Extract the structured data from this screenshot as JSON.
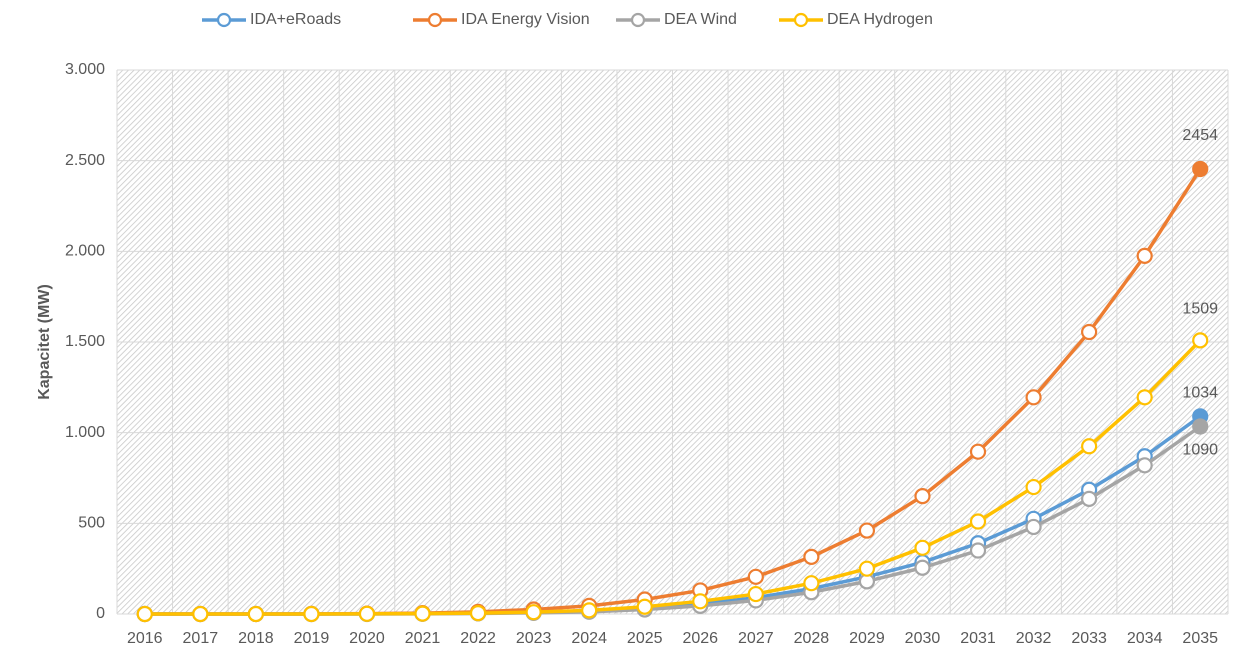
{
  "chart_data": {
    "type": "line",
    "y_label": "Kapacitet (MW)",
    "categories": [
      "2016",
      "2017",
      "2018",
      "2019",
      "2020",
      "2021",
      "2022",
      "2023",
      "2024",
      "2025",
      "2026",
      "2027",
      "2028",
      "2029",
      "2030",
      "2031",
      "2032",
      "2033",
      "2034",
      "2035"
    ],
    "series": [
      {
        "name": "IDA+eRoads",
        "color": "#5b9bd5",
        "values": [
          0,
          0,
          0,
          0,
          1,
          2,
          4,
          8,
          15,
          30,
          55,
          90,
          140,
          205,
          285,
          390,
          525,
          685,
          870,
          1090
        ]
      },
      {
        "name": "IDA Energy Vision",
        "color": "#ed7d31",
        "values": [
          0,
          0,
          0,
          1,
          2,
          5,
          12,
          25,
          45,
          80,
          130,
          205,
          315,
          460,
          650,
          895,
          1195,
          1555,
          1975,
          2454
        ]
      },
      {
        "name": "DEA Wind",
        "color": "#a5a5a5",
        "values": [
          0,
          0,
          0,
          0,
          0,
          1,
          3,
          6,
          12,
          25,
          45,
          75,
          120,
          180,
          255,
          350,
          480,
          635,
          820,
          1034
        ]
      },
      {
        "name": "DEA Hydrogen",
        "color": "#ffc000",
        "values": [
          0,
          0,
          0,
          0,
          1,
          2,
          5,
          10,
          20,
          40,
          70,
          110,
          170,
          250,
          365,
          510,
          700,
          925,
          1195,
          1509
        ]
      }
    ],
    "ylim": [
      0,
      3000
    ],
    "yticks": [
      0,
      500,
      {
        "value": 1000,
        "label": "1.000"
      },
      {
        "value": 1500,
        "label": "1.500"
      },
      {
        "value": 2000,
        "label": "2.000"
      },
      {
        "value": 2500,
        "label": "2.500"
      },
      {
        "value": 3000,
        "label": "3.000"
      }
    ],
    "grid": true,
    "legend": "top",
    "data_labels": "last"
  }
}
